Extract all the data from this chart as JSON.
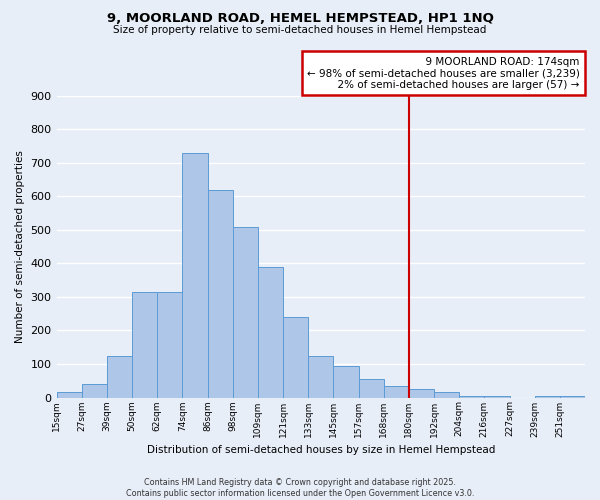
{
  "title1": "9, MOORLAND ROAD, HEMEL HEMPSTEAD, HP1 1NQ",
  "title2": "Size of property relative to semi-detached houses in Hemel Hempstead",
  "xlabel": "Distribution of semi-detached houses by size in Hemel Hempstead",
  "ylabel": "Number of semi-detached properties",
  "footnote": "Contains HM Land Registry data © Crown copyright and database right 2025.\nContains public sector information licensed under the Open Government Licence v3.0.",
  "bin_labels": [
    "15sqm",
    "27sqm",
    "39sqm",
    "50sqm",
    "62sqm",
    "74sqm",
    "86sqm",
    "98sqm",
    "109sqm",
    "121sqm",
    "133sqm",
    "145sqm",
    "157sqm",
    "168sqm",
    "180sqm",
    "192sqm",
    "204sqm",
    "216sqm",
    "227sqm",
    "239sqm",
    "251sqm"
  ],
  "bar_heights": [
    15,
    40,
    125,
    315,
    315,
    730,
    620,
    510,
    390,
    240,
    125,
    95,
    55,
    35,
    25,
    15,
    5,
    5,
    0,
    5,
    5
  ],
  "bar_color": "#aec6e8",
  "bar_edge_color": "#5b9bd5",
  "vline_color": "#cc0000",
  "annotation_box_edge": "#cc0000",
  "background_color": "#e8eef8",
  "grid_color": "#ffffff",
  "ylim": [
    0,
    900
  ],
  "yticks": [
    0,
    100,
    200,
    300,
    400,
    500,
    600,
    700,
    800,
    900
  ],
  "property_label": "9 MOORLAND ROAD: 174sqm",
  "pct_smaller": 98,
  "n_smaller": 3239,
  "pct_larger": 2,
  "n_larger": 57
}
